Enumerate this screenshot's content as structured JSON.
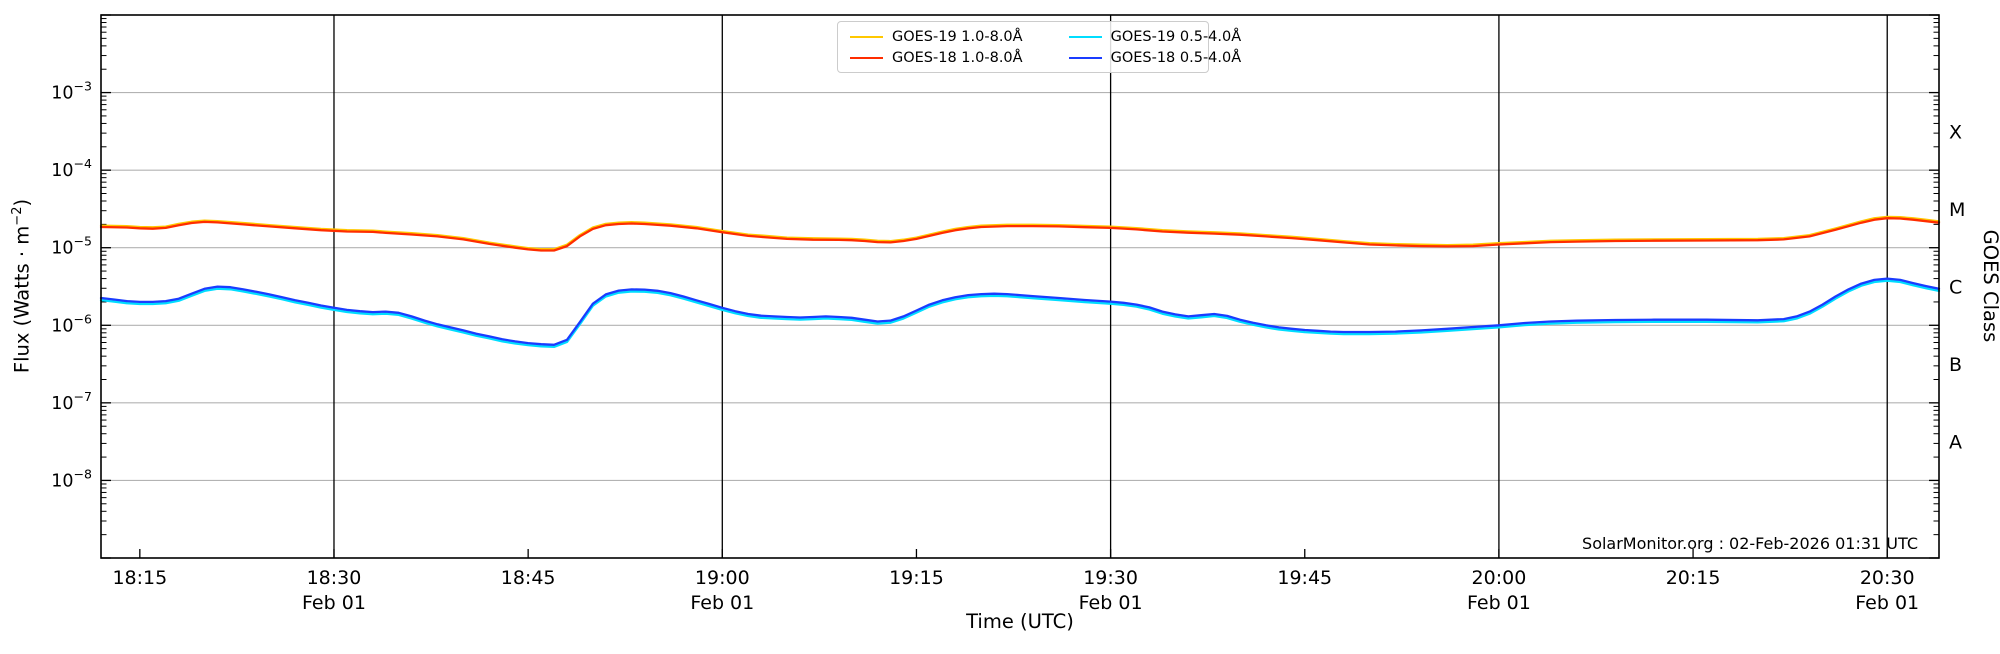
{
  "chart_data": {
    "type": "line",
    "title": "",
    "xlabel": "Time (UTC)",
    "ylabel_left": {
      "prefix": "Flux (Watts · m",
      "sup": "−2",
      "suffix": ")"
    },
    "ylabel_right": "GOES Class",
    "watermark": "SolarMonitor.org : 02-Feb-2026 01:31 UTC",
    "x_axis": {
      "units": "minutes after 18:00 UTC on 01-Feb",
      "start_minutes": 12,
      "end_minutes": 154,
      "ticks": [
        {
          "minutes": 15,
          "label": "18:15",
          "date": ""
        },
        {
          "minutes": 30,
          "label": "18:30",
          "date": "Feb 01"
        },
        {
          "minutes": 45,
          "label": "18:45",
          "date": ""
        },
        {
          "minutes": 60,
          "label": "19:00",
          "date": "Feb 01"
        },
        {
          "minutes": 75,
          "label": "19:15",
          "date": ""
        },
        {
          "minutes": 90,
          "label": "19:30",
          "date": "Feb 01"
        },
        {
          "minutes": 105,
          "label": "19:45",
          "date": ""
        },
        {
          "minutes": 120,
          "label": "20:00",
          "date": "Feb 01"
        },
        {
          "minutes": 135,
          "label": "20:15",
          "date": ""
        },
        {
          "minutes": 150,
          "label": "20:30",
          "date": "Feb 01"
        }
      ]
    },
    "y_axis": {
      "scale": "log",
      "log_min": -9,
      "log_max": -2,
      "decade_labels": [
        -3,
        -4,
        -5,
        -6,
        -7,
        -8
      ]
    },
    "goes_classes": [
      {
        "label": "X",
        "log_center": -3.5
      },
      {
        "label": "M",
        "log_center": -4.5
      },
      {
        "label": "C",
        "log_center": -5.5
      },
      {
        "label": "B",
        "log_center": -6.5
      },
      {
        "label": "A",
        "log_center": -7.5
      }
    ],
    "grid": {
      "vertical_minutes": [
        30,
        60,
        90,
        120,
        150
      ],
      "horizontal_decades": [
        -3,
        -4,
        -5,
        -6,
        -7,
        -8
      ],
      "grid_color": "#b3b3b3",
      "vline_color": "#000000"
    },
    "legend": [
      {
        "name": "GOES-19 1.0-8.0Å",
        "color": "#ffc800"
      },
      {
        "name": "GOES-18 1.0-8.0Å",
        "color": "#ff2d00"
      },
      {
        "name": "GOES-19 0.5-4.0Å",
        "color": "#00ddff"
      },
      {
        "name": "GOES-18 0.5-4.0Å",
        "color": "#1a3cff"
      }
    ],
    "series": [
      {
        "name": "GOES-19 1.0-8.0Å",
        "color": "#ffc800",
        "same_as": "GOES-18 1.0-8.0Å",
        "flux_ratio": 1.04
      },
      {
        "name": "GOES-19 0.5-4.0Å",
        "color": "#00ddff",
        "same_as": "GOES-18 0.5-4.0Å",
        "flux_ratio": 0.94
      },
      {
        "name": "GOES-18 1.0-8.0Å",
        "color": "#ff2d00",
        "points": [
          [
            12,
            1.85e-05
          ],
          [
            14,
            1.82e-05
          ],
          [
            15,
            1.78e-05
          ],
          [
            16,
            1.76e-05
          ],
          [
            17,
            1.8e-05
          ],
          [
            18,
            1.95e-05
          ],
          [
            19,
            2.08e-05
          ],
          [
            20,
            2.15e-05
          ],
          [
            21,
            2.12e-05
          ],
          [
            23,
            2e-05
          ],
          [
            25,
            1.88e-05
          ],
          [
            27,
            1.78e-05
          ],
          [
            29,
            1.68e-05
          ],
          [
            31,
            1.62e-05
          ],
          [
            33,
            1.6e-05
          ],
          [
            34,
            1.55e-05
          ],
          [
            36,
            1.48e-05
          ],
          [
            38,
            1.4e-05
          ],
          [
            40,
            1.28e-05
          ],
          [
            42,
            1.12e-05
          ],
          [
            44,
            1e-05
          ],
          [
            45,
            9.5e-06
          ],
          [
            46,
            9.2e-06
          ],
          [
            47,
            9.2e-06
          ],
          [
            48,
            1.05e-05
          ],
          [
            49,
            1.4e-05
          ],
          [
            50,
            1.75e-05
          ],
          [
            51,
            1.95e-05
          ],
          [
            52,
            2.02e-05
          ],
          [
            53,
            2.05e-05
          ],
          [
            54,
            2.02e-05
          ],
          [
            56,
            1.92e-05
          ],
          [
            58,
            1.78e-05
          ],
          [
            60,
            1.58e-05
          ],
          [
            62,
            1.42e-05
          ],
          [
            63,
            1.38e-05
          ],
          [
            65,
            1.3e-05
          ],
          [
            67,
            1.27e-05
          ],
          [
            69,
            1.26e-05
          ],
          [
            70,
            1.25e-05
          ],
          [
            71,
            1.22e-05
          ],
          [
            72,
            1.18e-05
          ],
          [
            73,
            1.17e-05
          ],
          [
            74,
            1.22e-05
          ],
          [
            75,
            1.3e-05
          ],
          [
            76,
            1.42e-05
          ],
          [
            77,
            1.55e-05
          ],
          [
            78,
            1.68e-05
          ],
          [
            79,
            1.78e-05
          ],
          [
            80,
            1.85e-05
          ],
          [
            82,
            1.9e-05
          ],
          [
            84,
            1.9e-05
          ],
          [
            86,
            1.88e-05
          ],
          [
            88,
            1.84e-05
          ],
          [
            90,
            1.8e-05
          ],
          [
            92,
            1.72e-05
          ],
          [
            94,
            1.62e-05
          ],
          [
            96,
            1.56e-05
          ],
          [
            98,
            1.52e-05
          ],
          [
            100,
            1.47e-05
          ],
          [
            102,
            1.4e-05
          ],
          [
            104,
            1.33e-05
          ],
          [
            106,
            1.25e-05
          ],
          [
            108,
            1.17e-05
          ],
          [
            110,
            1.1e-05
          ],
          [
            112,
            1.07e-05
          ],
          [
            114,
            1.05e-05
          ],
          [
            116,
            1.04e-05
          ],
          [
            118,
            1.05e-05
          ],
          [
            120,
            1.1e-05
          ],
          [
            122,
            1.14e-05
          ],
          [
            124,
            1.18e-05
          ],
          [
            126,
            1.2e-05
          ],
          [
            129,
            1.22e-05
          ],
          [
            132,
            1.23e-05
          ],
          [
            136,
            1.24e-05
          ],
          [
            140,
            1.25e-05
          ],
          [
            142,
            1.28e-05
          ],
          [
            144,
            1.4e-05
          ],
          [
            146,
            1.7e-05
          ],
          [
            148,
            2.1e-05
          ],
          [
            149,
            2.3e-05
          ],
          [
            150,
            2.4e-05
          ],
          [
            151,
            2.38e-05
          ],
          [
            152,
            2.3e-05
          ],
          [
            153,
            2.2e-05
          ],
          [
            154,
            2.1e-05
          ]
        ]
      },
      {
        "name": "GOES-18 0.5-4.0Å",
        "color": "#1a3cff",
        "points": [
          [
            12,
            2.25e-06
          ],
          [
            13,
            2.15e-06
          ],
          [
            14,
            2.05e-06
          ],
          [
            15,
            2e-06
          ],
          [
            16,
            2e-06
          ],
          [
            17,
            2.05e-06
          ],
          [
            18,
            2.2e-06
          ],
          [
            19,
            2.55e-06
          ],
          [
            20,
            2.95e-06
          ],
          [
            21,
            3.15e-06
          ],
          [
            22,
            3.1e-06
          ],
          [
            23,
            2.9e-06
          ],
          [
            24,
            2.7e-06
          ],
          [
            25,
            2.5e-06
          ],
          [
            26,
            2.3e-06
          ],
          [
            27,
            2.1e-06
          ],
          [
            28,
            1.95e-06
          ],
          [
            29,
            1.8e-06
          ],
          [
            30,
            1.68e-06
          ],
          [
            31,
            1.58e-06
          ],
          [
            32,
            1.52e-06
          ],
          [
            33,
            1.48e-06
          ],
          [
            34,
            1.5e-06
          ],
          [
            35,
            1.45e-06
          ],
          [
            36,
            1.3e-06
          ],
          [
            37,
            1.15e-06
          ],
          [
            38,
            1.03e-06
          ],
          [
            39,
            9.4e-07
          ],
          [
            40,
            8.6e-07
          ],
          [
            41,
            7.8e-07
          ],
          [
            42,
            7.2e-07
          ],
          [
            43,
            6.6e-07
          ],
          [
            44,
            6.2e-07
          ],
          [
            45,
            5.9e-07
          ],
          [
            46,
            5.7e-07
          ],
          [
            47,
            5.6e-07
          ],
          [
            48,
            6.5e-07
          ],
          [
            49,
            1.1e-06
          ],
          [
            50,
            1.9e-06
          ],
          [
            51,
            2.5e-06
          ],
          [
            52,
            2.8e-06
          ],
          [
            53,
            2.9e-06
          ],
          [
            54,
            2.88e-06
          ],
          [
            55,
            2.78e-06
          ],
          [
            56,
            2.6e-06
          ],
          [
            57,
            2.35e-06
          ],
          [
            58,
            2.1e-06
          ],
          [
            59,
            1.88e-06
          ],
          [
            60,
            1.68e-06
          ],
          [
            61,
            1.52e-06
          ],
          [
            62,
            1.4e-06
          ],
          [
            63,
            1.33e-06
          ],
          [
            64,
            1.3e-06
          ],
          [
            65,
            1.28e-06
          ],
          [
            66,
            1.26e-06
          ],
          [
            67,
            1.28e-06
          ],
          [
            68,
            1.3e-06
          ],
          [
            69,
            1.28e-06
          ],
          [
            70,
            1.25e-06
          ],
          [
            71,
            1.18e-06
          ],
          [
            72,
            1.12e-06
          ],
          [
            73,
            1.15e-06
          ],
          [
            74,
            1.3e-06
          ],
          [
            75,
            1.55e-06
          ],
          [
            76,
            1.85e-06
          ],
          [
            77,
            2.1e-06
          ],
          [
            78,
            2.3e-06
          ],
          [
            79,
            2.45e-06
          ],
          [
            80,
            2.52e-06
          ],
          [
            81,
            2.55e-06
          ],
          [
            82,
            2.52e-06
          ],
          [
            83,
            2.45e-06
          ],
          [
            84,
            2.38e-06
          ],
          [
            86,
            2.25e-06
          ],
          [
            88,
            2.12e-06
          ],
          [
            90,
            2.02e-06
          ],
          [
            91,
            1.95e-06
          ],
          [
            92,
            1.85e-06
          ],
          [
            93,
            1.7e-06
          ],
          [
            94,
            1.5e-06
          ],
          [
            95,
            1.38e-06
          ],
          [
            96,
            1.3e-06
          ],
          [
            97,
            1.35e-06
          ],
          [
            98,
            1.4e-06
          ],
          [
            99,
            1.32e-06
          ],
          [
            100,
            1.18e-06
          ],
          [
            101,
            1.08e-06
          ],
          [
            102,
            1e-06
          ],
          [
            103,
            9.4e-07
          ],
          [
            104,
            9e-07
          ],
          [
            105,
            8.7e-07
          ],
          [
            106,
            8.5e-07
          ],
          [
            107,
            8.3e-07
          ],
          [
            108,
            8.2e-07
          ],
          [
            110,
            8.2e-07
          ],
          [
            112,
            8.3e-07
          ],
          [
            114,
            8.6e-07
          ],
          [
            116,
            9e-07
          ],
          [
            118,
            9.5e-07
          ],
          [
            120,
            1e-06
          ],
          [
            122,
            1.07e-06
          ],
          [
            124,
            1.12e-06
          ],
          [
            126,
            1.15e-06
          ],
          [
            129,
            1.17e-06
          ],
          [
            132,
            1.18e-06
          ],
          [
            136,
            1.18e-06
          ],
          [
            140,
            1.16e-06
          ],
          [
            142,
            1.2e-06
          ],
          [
            143,
            1.3e-06
          ],
          [
            144,
            1.5e-06
          ],
          [
            145,
            1.85e-06
          ],
          [
            146,
            2.35e-06
          ],
          [
            147,
            2.9e-06
          ],
          [
            148,
            3.45e-06
          ],
          [
            149,
            3.85e-06
          ],
          [
            150,
            4e-06
          ],
          [
            151,
            3.85e-06
          ],
          [
            152,
            3.5e-06
          ],
          [
            153,
            3.2e-06
          ],
          [
            154,
            2.95e-06
          ]
        ]
      }
    ]
  }
}
